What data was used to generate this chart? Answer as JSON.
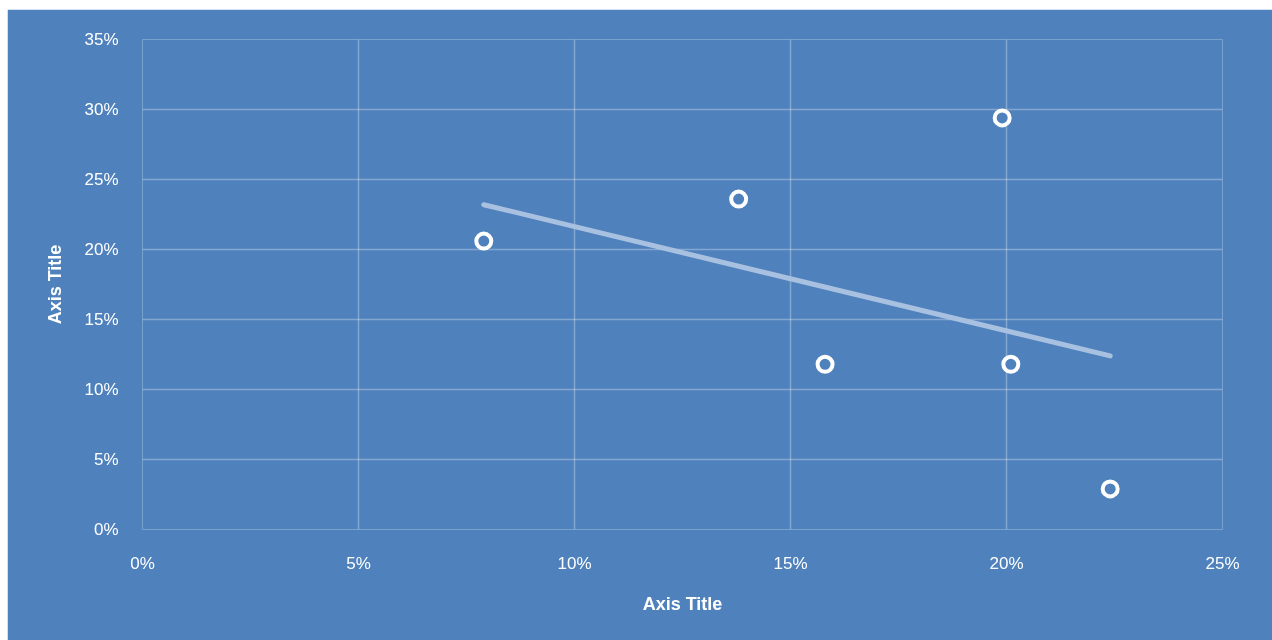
{
  "chart_data": {
    "type": "scatter",
    "xlabel": "Axis Title",
    "ylabel": "Axis Title",
    "xlim": [
      0,
      25
    ],
    "xticks": [
      {
        "value": 0,
        "label": "0%"
      },
      {
        "value": 5,
        "label": "5%"
      },
      {
        "value": 10,
        "label": "10%"
      },
      {
        "value": 15,
        "label": "15%"
      },
      {
        "value": 20,
        "label": "20%"
      },
      {
        "value": 25,
        "label": "25%"
      }
    ],
    "ylim": [
      0,
      35
    ],
    "yticks": [
      {
        "value": 0,
        "label": "0%"
      },
      {
        "value": 5,
        "label": "5%"
      },
      {
        "value": 10,
        "label": "10%"
      },
      {
        "value": 15,
        "label": "15%"
      },
      {
        "value": 20,
        "label": "20%"
      },
      {
        "value": 25,
        "label": "25%"
      },
      {
        "value": 30,
        "label": "30%"
      },
      {
        "value": 35,
        "label": "35%"
      }
    ],
    "grid": true,
    "series": [
      {
        "type": "line",
        "color": "#a9c1e0",
        "line_style": "solid",
        "x": [
          7.9,
          22.4
        ],
        "values": [
          23.2,
          12.4
        ]
      },
      {
        "color": "#ffffff",
        "marker": "circle",
        "x": [
          7.9,
          13.8,
          15.8,
          19.9,
          20.1,
          22.4
        ],
        "values": [
          20.6,
          23.6,
          11.8,
          29.4,
          11.8,
          2.9
        ]
      }
    ]
  }
}
